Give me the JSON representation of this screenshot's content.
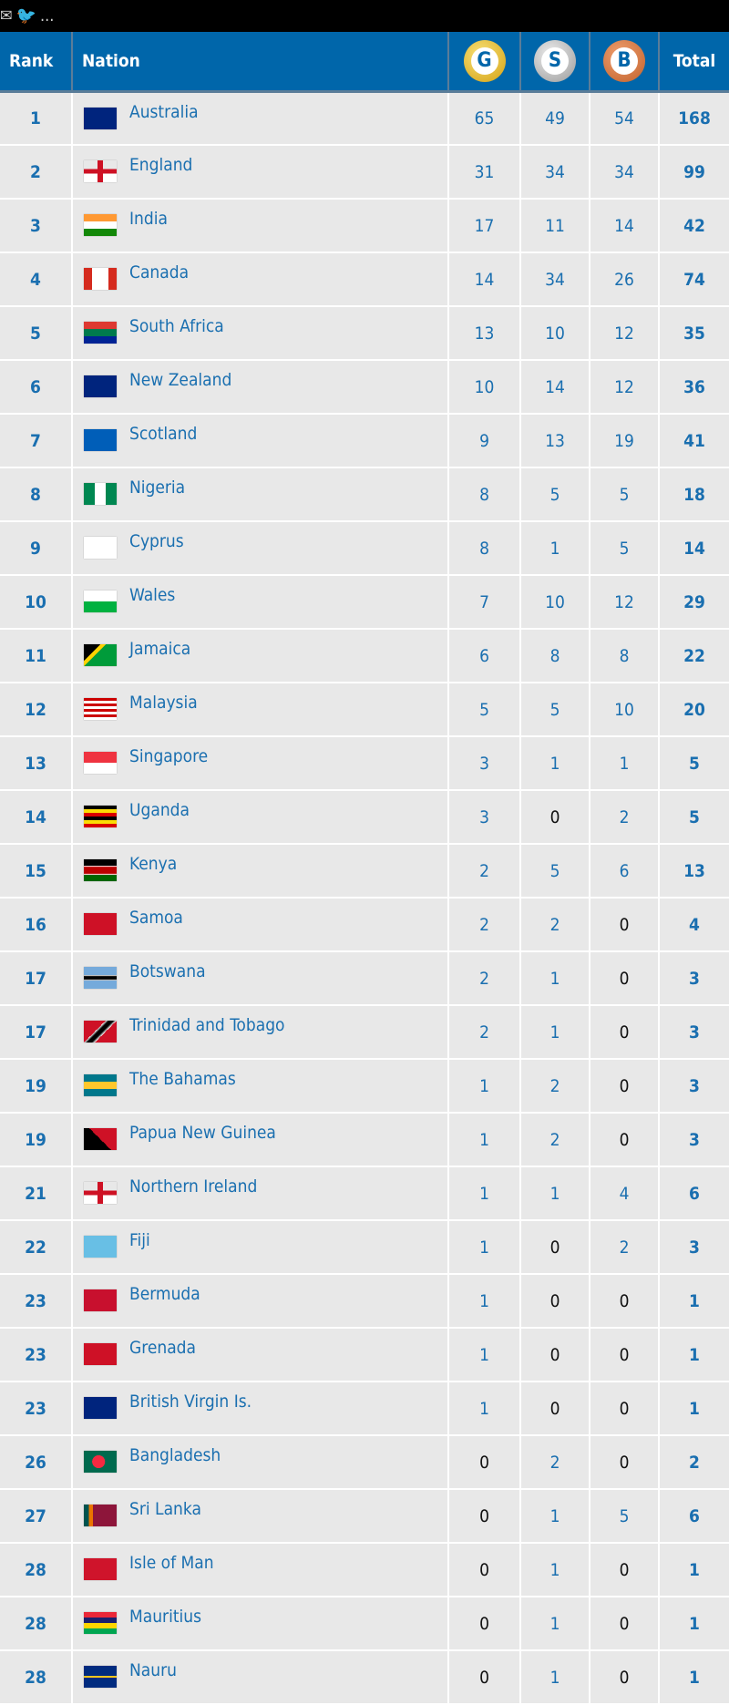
{
  "topbar": {
    "icons": [
      "share-icon",
      "twitter-icon"
    ],
    "more": "..."
  },
  "header": {
    "rank": "Rank",
    "nation": "Nation",
    "gold": "G",
    "silver": "S",
    "bronze": "B",
    "total": "Total"
  },
  "colors": {
    "header_bg": "#0066aa",
    "gold": "#e0b020",
    "silver": "#a8a8a8",
    "bronze": "#d07040",
    "link": "#1a6fb0"
  },
  "rows": [
    {
      "rank": "1",
      "nation": "Australia",
      "g": "65",
      "s": "49",
      "b": "54",
      "t": "168"
    },
    {
      "rank": "2",
      "nation": "England",
      "g": "31",
      "s": "34",
      "b": "34",
      "t": "99"
    },
    {
      "rank": "3",
      "nation": "India",
      "g": "17",
      "s": "11",
      "b": "14",
      "t": "42"
    },
    {
      "rank": "4",
      "nation": "Canada",
      "g": "14",
      "s": "34",
      "b": "26",
      "t": "74"
    },
    {
      "rank": "5",
      "nation": "South Africa",
      "g": "13",
      "s": "10",
      "b": "12",
      "t": "35"
    },
    {
      "rank": "6",
      "nation": "New Zealand",
      "g": "10",
      "s": "14",
      "b": "12",
      "t": "36"
    },
    {
      "rank": "7",
      "nation": "Scotland",
      "g": "9",
      "s": "13",
      "b": "19",
      "t": "41"
    },
    {
      "rank": "8",
      "nation": "Nigeria",
      "g": "8",
      "s": "5",
      "b": "5",
      "t": "18"
    },
    {
      "rank": "9",
      "nation": "Cyprus",
      "g": "8",
      "s": "1",
      "b": "5",
      "t": "14"
    },
    {
      "rank": "10",
      "nation": "Wales",
      "g": "7",
      "s": "10",
      "b": "12",
      "t": "29"
    },
    {
      "rank": "11",
      "nation": "Jamaica",
      "g": "6",
      "s": "8",
      "b": "8",
      "t": "22"
    },
    {
      "rank": "12",
      "nation": "Malaysia",
      "g": "5",
      "s": "5",
      "b": "10",
      "t": "20"
    },
    {
      "rank": "13",
      "nation": "Singapore",
      "g": "3",
      "s": "1",
      "b": "1",
      "t": "5"
    },
    {
      "rank": "14",
      "nation": "Uganda",
      "g": "3",
      "s": "0",
      "b": "2",
      "t": "5"
    },
    {
      "rank": "15",
      "nation": "Kenya",
      "g": "2",
      "s": "5",
      "b": "6",
      "t": "13"
    },
    {
      "rank": "16",
      "nation": "Samoa",
      "g": "2",
      "s": "2",
      "b": "0",
      "t": "4"
    },
    {
      "rank": "17",
      "nation": "Botswana",
      "g": "2",
      "s": "1",
      "b": "0",
      "t": "3"
    },
    {
      "rank": "17",
      "nation": "Trinidad and Tobago",
      "g": "2",
      "s": "1",
      "b": "0",
      "t": "3"
    },
    {
      "rank": "19",
      "nation": "The Bahamas",
      "g": "1",
      "s": "2",
      "b": "0",
      "t": "3"
    },
    {
      "rank": "19",
      "nation": "Papua New Guinea",
      "g": "1",
      "s": "2",
      "b": "0",
      "t": "3"
    },
    {
      "rank": "21",
      "nation": "Northern Ireland",
      "g": "1",
      "s": "1",
      "b": "4",
      "t": "6"
    },
    {
      "rank": "22",
      "nation": "Fiji",
      "g": "1",
      "s": "0",
      "b": "2",
      "t": "3"
    },
    {
      "rank": "23",
      "nation": "Bermuda",
      "g": "1",
      "s": "0",
      "b": "0",
      "t": "1"
    },
    {
      "rank": "23",
      "nation": "Grenada",
      "g": "1",
      "s": "0",
      "b": "0",
      "t": "1"
    },
    {
      "rank": "23",
      "nation": "British Virgin Is.",
      "g": "1",
      "s": "0",
      "b": "0",
      "t": "1"
    },
    {
      "rank": "26",
      "nation": "Bangladesh",
      "g": "0",
      "s": "2",
      "b": "0",
      "t": "2"
    },
    {
      "rank": "27",
      "nation": "Sri Lanka",
      "g": "0",
      "s": "1",
      "b": "5",
      "t": "6"
    },
    {
      "rank": "28",
      "nation": "Isle of Man",
      "g": "0",
      "s": "1",
      "b": "0",
      "t": "1"
    },
    {
      "rank": "28",
      "nation": "Mauritius",
      "g": "0",
      "s": "1",
      "b": "0",
      "t": "1"
    },
    {
      "rank": "28",
      "nation": "Nauru",
      "g": "0",
      "s": "1",
      "b": "0",
      "t": "1"
    }
  ]
}
